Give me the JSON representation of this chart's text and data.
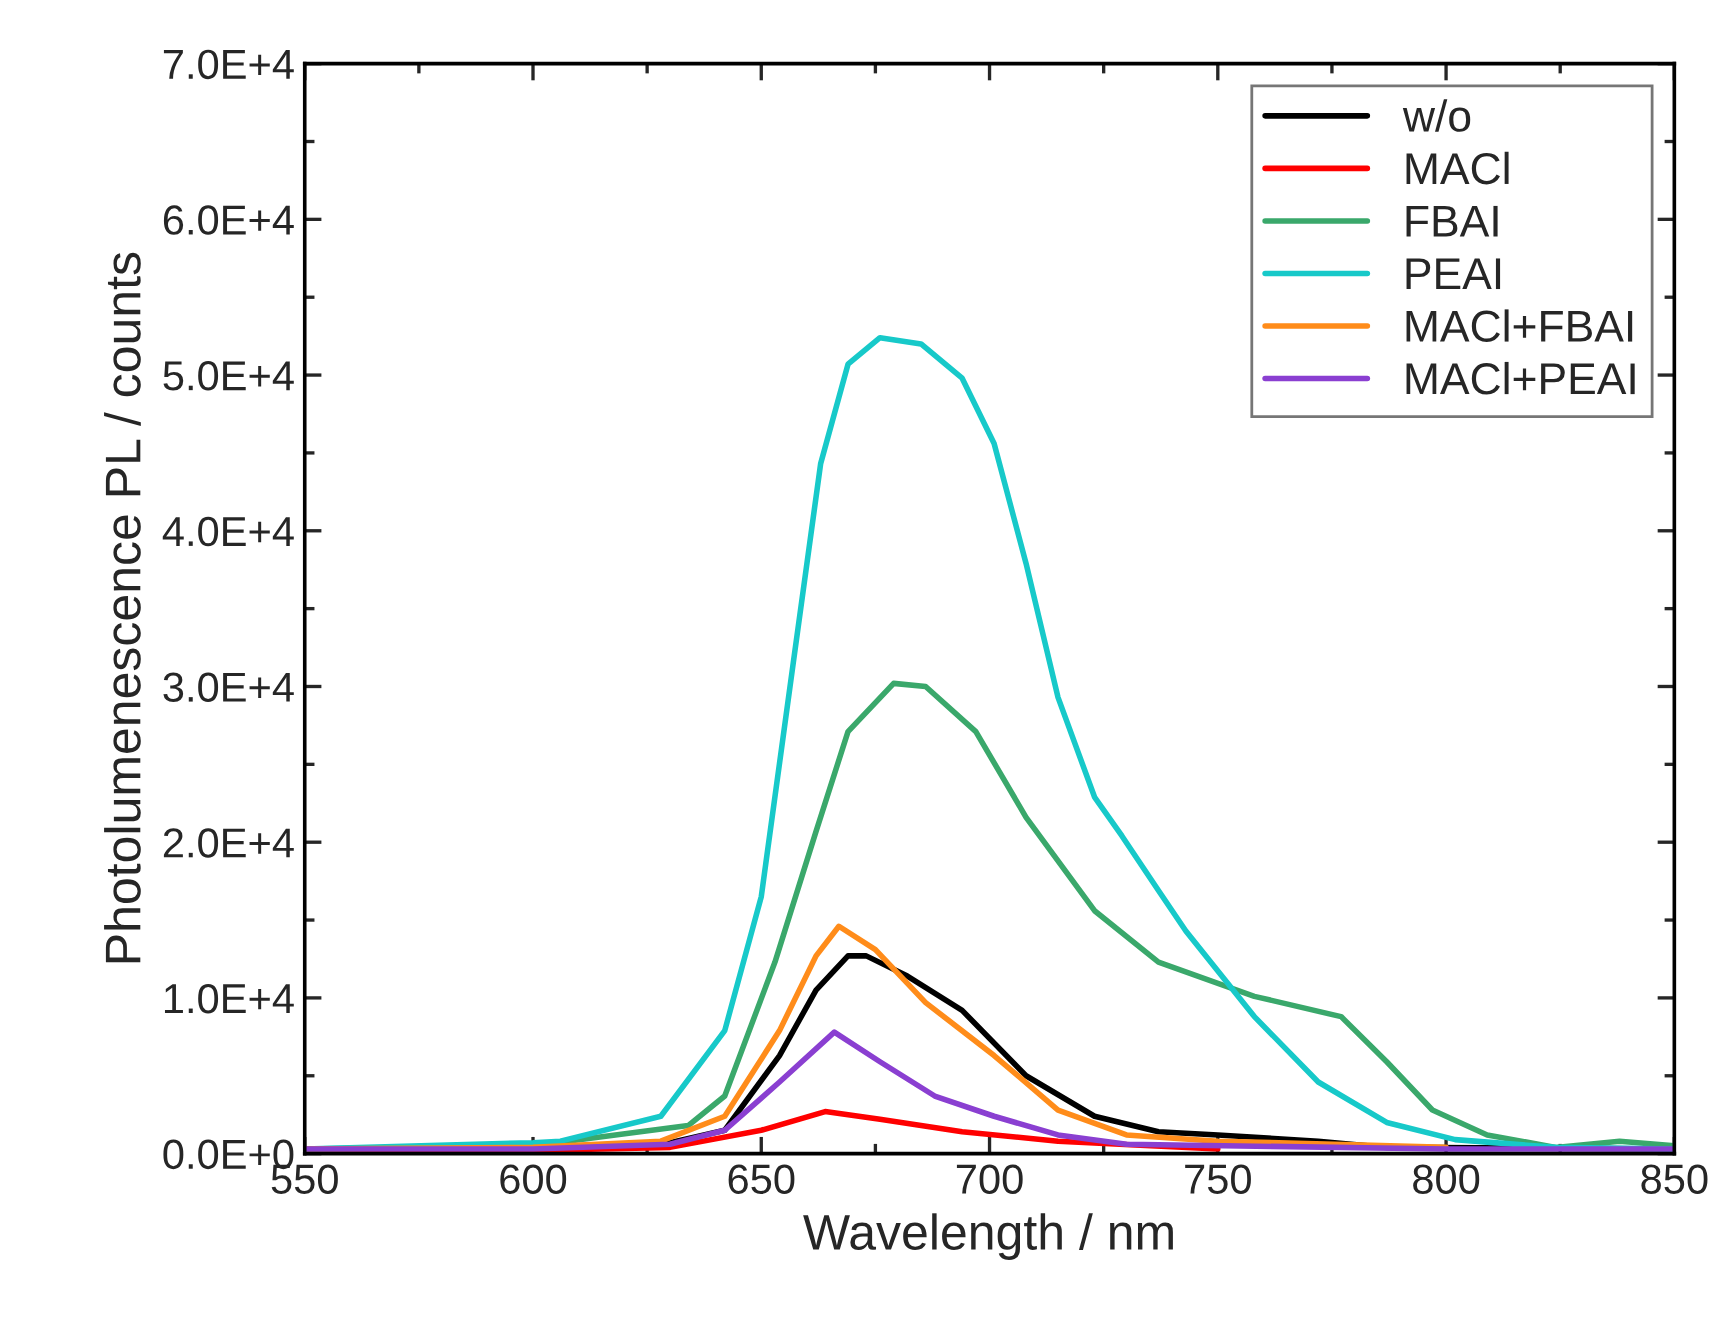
{
  "chart_data": {
    "type": "line",
    "xlabel": "Wavelength / nm",
    "ylabel": "Photolumenescence PL / counts",
    "xlim": [
      550,
      850
    ],
    "xticks": [
      550,
      600,
      650,
      700,
      750,
      800,
      850
    ],
    "ylim": [
      0,
      70000
    ],
    "yticks": [
      {
        "value": 0,
        "label": "0.0E+0"
      },
      {
        "value": 10000,
        "label": "1.0E+4"
      },
      {
        "value": 20000,
        "label": "2.0E+4"
      },
      {
        "value": 30000,
        "label": "3.0E+4"
      },
      {
        "value": 40000,
        "label": "4.0E+4"
      },
      {
        "value": 50000,
        "label": "5.0E+4"
      },
      {
        "value": 60000,
        "label": "6.0E+4"
      },
      {
        "value": 70000,
        "label": "7.0E+4"
      }
    ],
    "grid": false,
    "legend": "top right",
    "marker": "none",
    "line_style": "solid",
    "series": [
      {
        "name": "w/o",
        "color": "#000000",
        "x": [
          550,
          600,
          630,
          642,
          654,
          662,
          669,
          673,
          682,
          694,
          708,
          723,
          737,
          750,
          772,
          787,
          850
        ],
        "values": [
          300,
          400,
          700,
          1500,
          6300,
          10500,
          12700,
          12700,
          11400,
          9200,
          5000,
          2400,
          1400,
          1200,
          800,
          400,
          300
        ]
      },
      {
        "name": "MACl",
        "color": "#ff0000",
        "x": [
          550,
          600,
          630,
          650,
          664,
          676,
          694,
          715,
          750
        ],
        "values": [
          200,
          200,
          400,
          1500,
          2700,
          2200,
          1400,
          800,
          300
        ]
      },
      {
        "name": "FBAI",
        "color": "#3aa86b",
        "x": [
          550,
          600,
          634,
          642,
          653,
          662,
          669,
          679,
          686,
          697,
          708,
          723,
          737,
          758,
          777,
          787,
          797,
          809,
          824,
          838,
          850
        ],
        "values": [
          300,
          500,
          1800,
          3700,
          12300,
          20700,
          27100,
          30200,
          30000,
          27100,
          21600,
          15600,
          12300,
          10100,
          8800,
          5900,
          2800,
          1200,
          400,
          800,
          500
        ]
      },
      {
        "name": "PEAI",
        "color": "#17c9c9",
        "x": [
          550,
          600,
          606,
          628,
          642,
          650,
          657,
          663,
          669,
          676,
          685,
          694,
          701,
          708,
          715,
          723,
          729,
          737,
          743,
          758,
          772,
          787,
          802,
          824,
          850
        ],
        "values": [
          300,
          700,
          800,
          2400,
          7900,
          16500,
          31500,
          44300,
          50700,
          52400,
          52000,
          49800,
          45600,
          37900,
          29300,
          22900,
          20400,
          16900,
          14300,
          8800,
          4600,
          2000,
          900,
          400,
          300
        ]
      },
      {
        "name": "MACl+FBAI",
        "color": "#ff8c1a",
        "x": [
          550,
          600,
          628,
          642,
          654,
          662,
          667,
          675,
          686,
          701,
          715,
          730,
          750,
          800
        ],
        "values": [
          300,
          400,
          800,
          2400,
          7900,
          12700,
          14600,
          13100,
          9700,
          6300,
          2800,
          1200,
          800,
          400
        ]
      },
      {
        "name": "MACl+PEAI",
        "color": "#8a3fd1",
        "x": [
          550,
          600,
          630,
          642,
          654,
          666,
          676,
          688,
          701,
          715,
          730,
          800,
          850
        ],
        "values": [
          300,
          300,
          600,
          1500,
          4600,
          7800,
          5900,
          3700,
          2400,
          1200,
          600,
          300,
          300
        ]
      }
    ]
  }
}
